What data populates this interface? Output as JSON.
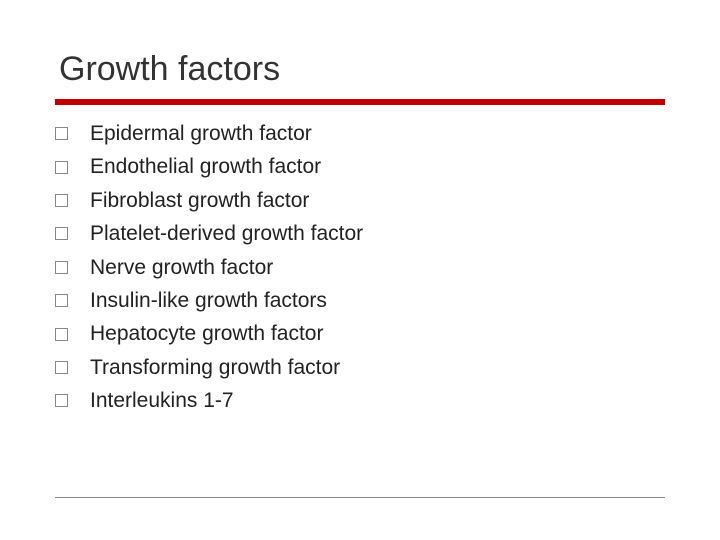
{
  "slide": {
    "title": "Growth factors",
    "title_fontsize": 34,
    "title_color": "#333333",
    "underline_color": "#c00000",
    "underline_height": 6,
    "background_color": "#ffffff",
    "bullet_border_color": "#888888",
    "bullet_size": 13,
    "item_fontsize": 21,
    "item_color": "#222222",
    "footer_line_color": "#888888",
    "items": [
      "Epidermal growth factor",
      "Endothelial growth factor",
      "Fibroblast growth factor",
      "Platelet-derived growth factor",
      "Nerve growth factor",
      "Insulin-like growth factors",
      "Hepatocyte growth factor",
      "Transforming growth factor",
      "Interleukins 1-7"
    ]
  }
}
